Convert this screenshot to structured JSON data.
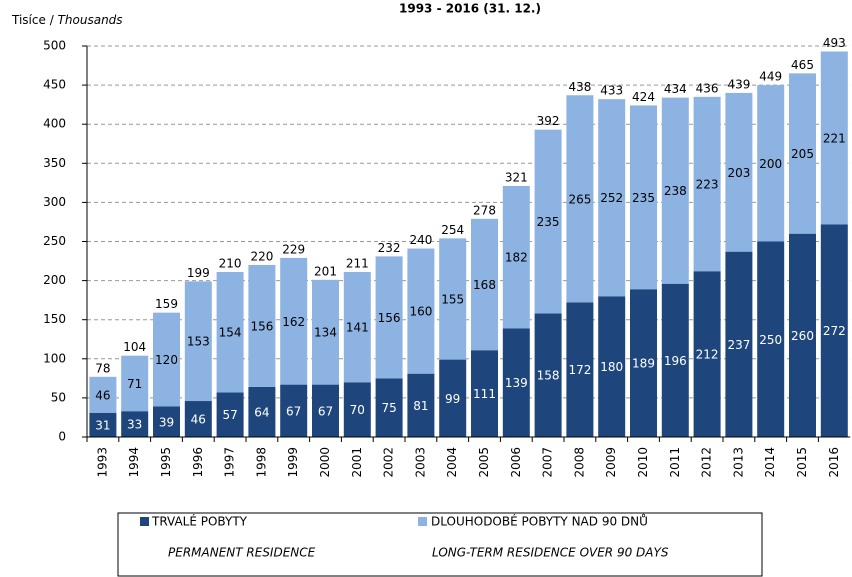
{
  "chart_data": {
    "type": "stacked_bar",
    "title": "1993 - 2016 (31. 12.)",
    "y_label": [
      "Tisíce",
      "/",
      "Thousands"
    ],
    "categories": [
      "1993",
      "1994",
      "1995",
      "1996",
      "1997",
      "1998",
      "1999",
      "2000",
      "2001",
      "2002",
      "2003",
      "2004",
      "2005",
      "2006",
      "2007",
      "2008",
      "2009",
      "2010",
      "2011",
      "2012",
      "2013",
      "2014",
      "2015",
      "2016"
    ],
    "series": [
      {
        "name": "TRVALÉ POBYTY",
        "name_en": "PERMANENT RESIDENCE",
        "color": "#1f467c",
        "label_color": "#ffffff",
        "values": [
          31,
          33,
          39,
          46,
          57,
          64,
          67,
          67,
          70,
          75,
          81,
          99,
          111,
          139,
          158,
          172,
          180,
          189,
          196,
          212,
          237,
          250,
          260,
          272
        ]
      },
      {
        "name": "DLOUHODOBÉ POBYTY NAD 90 DNŮ",
        "name_en": "LONG-TERM RESIDENCE OVER 90 DAYS",
        "color": "#8db3e2",
        "label_color": "#000000",
        "values": [
          46,
          71,
          120,
          153,
          154,
          156,
          162,
          134,
          141,
          156,
          160,
          155,
          168,
          182,
          235,
          265,
          252,
          235,
          238,
          223,
          203,
          200,
          205,
          221
        ]
      }
    ],
    "totals": [
      78,
      104,
      159,
      199,
      210,
      220,
      229,
      201,
      211,
      232,
      240,
      254,
      278,
      321,
      392,
      438,
      433,
      424,
      434,
      436,
      439,
      449,
      465,
      493
    ],
    "ylim": [
      0,
      500
    ],
    "yticks": [
      0,
      50,
      100,
      150,
      200,
      250,
      300,
      350,
      400,
      450,
      500
    ],
    "grid": true
  }
}
